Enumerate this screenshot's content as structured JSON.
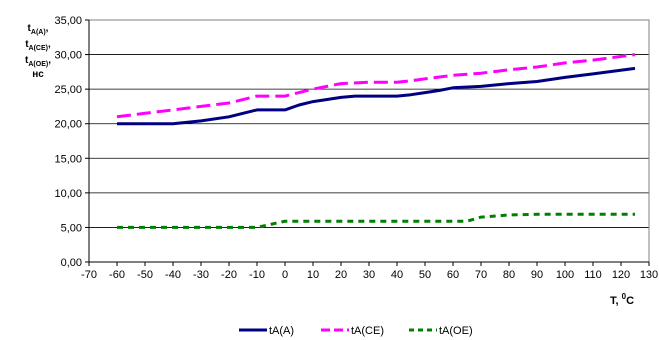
{
  "chart_data": {
    "type": "line",
    "title": "",
    "ylabel": {
      "lines": [
        {
          "base": "t",
          "sub": "A(A)",
          "tail": ","
        },
        {
          "base": "t",
          "sub": "A(CE)",
          "tail": ","
        },
        {
          "base": "t",
          "sub": "A(OE)",
          "tail": ","
        },
        {
          "base": "нс",
          "sub": "",
          "tail": ""
        }
      ]
    },
    "xlabel": {
      "base": "T, ",
      "sup": "0",
      "tail": "C"
    },
    "xlim": [
      -70,
      130
    ],
    "ylim": [
      0,
      35
    ],
    "xticks": [
      "-70",
      "-60",
      "-50",
      "-40",
      "-30",
      "-20",
      "-10",
      "0",
      "10",
      "20",
      "30",
      "40",
      "50",
      "60",
      "70",
      "80",
      "90",
      "100",
      "110",
      "120",
      "130"
    ],
    "xtick_values": [
      -70,
      -60,
      -50,
      -40,
      -30,
      -20,
      -10,
      0,
      10,
      20,
      30,
      40,
      50,
      60,
      70,
      80,
      90,
      100,
      110,
      120,
      130
    ],
    "yticks": [
      "0,00",
      "5,00",
      "10,00",
      "15,00",
      "20,00",
      "25,00",
      "30,00",
      "35,00"
    ],
    "ytick_values": [
      0,
      5,
      10,
      15,
      20,
      25,
      30,
      35
    ],
    "grid": "horizontal",
    "legend_position": "bottom",
    "series": [
      {
        "name": "tA(A)",
        "color": "#000080",
        "style": "solid",
        "x": [
          -60,
          -50,
          -40,
          -30,
          -20,
          -15,
          -10,
          0,
          5,
          10,
          20,
          25,
          30,
          40,
          45,
          50,
          55,
          60,
          70,
          80,
          90,
          100,
          110,
          125
        ],
        "y": [
          20,
          20,
          20,
          20.4,
          21,
          21.5,
          22,
          22,
          22.7,
          23.2,
          23.8,
          24,
          24,
          24,
          24.2,
          24.5,
          24.8,
          25.2,
          25.4,
          25.8,
          26.1,
          26.7,
          27.2,
          28
        ]
      },
      {
        "name": "tA(CE)",
        "color": "#FF00FF",
        "style": "dashed",
        "x": [
          -60,
          -50,
          -40,
          -30,
          -20,
          -10,
          0,
          10,
          20,
          30,
          40,
          45,
          50,
          60,
          70,
          80,
          90,
          100,
          110,
          125
        ],
        "y": [
          21,
          21.5,
          22,
          22.5,
          23,
          24,
          24,
          25,
          25.8,
          26,
          26,
          26.2,
          26.5,
          27,
          27.3,
          27.8,
          28.2,
          28.8,
          29.2,
          30
        ]
      },
      {
        "name": "tA(OE)",
        "color": "#008000",
        "style": "dashed",
        "x": [
          -60,
          -50,
          -40,
          -30,
          -20,
          -10,
          0,
          10,
          20,
          30,
          40,
          50,
          60,
          65,
          70,
          80,
          90,
          100,
          110,
          125
        ],
        "y": [
          5,
          5,
          5,
          5,
          5,
          5,
          5.9,
          5.9,
          5.9,
          5.9,
          5.9,
          5.9,
          5.9,
          5.9,
          6.5,
          6.8,
          6.9,
          6.9,
          6.9,
          6.9
        ]
      }
    ]
  }
}
